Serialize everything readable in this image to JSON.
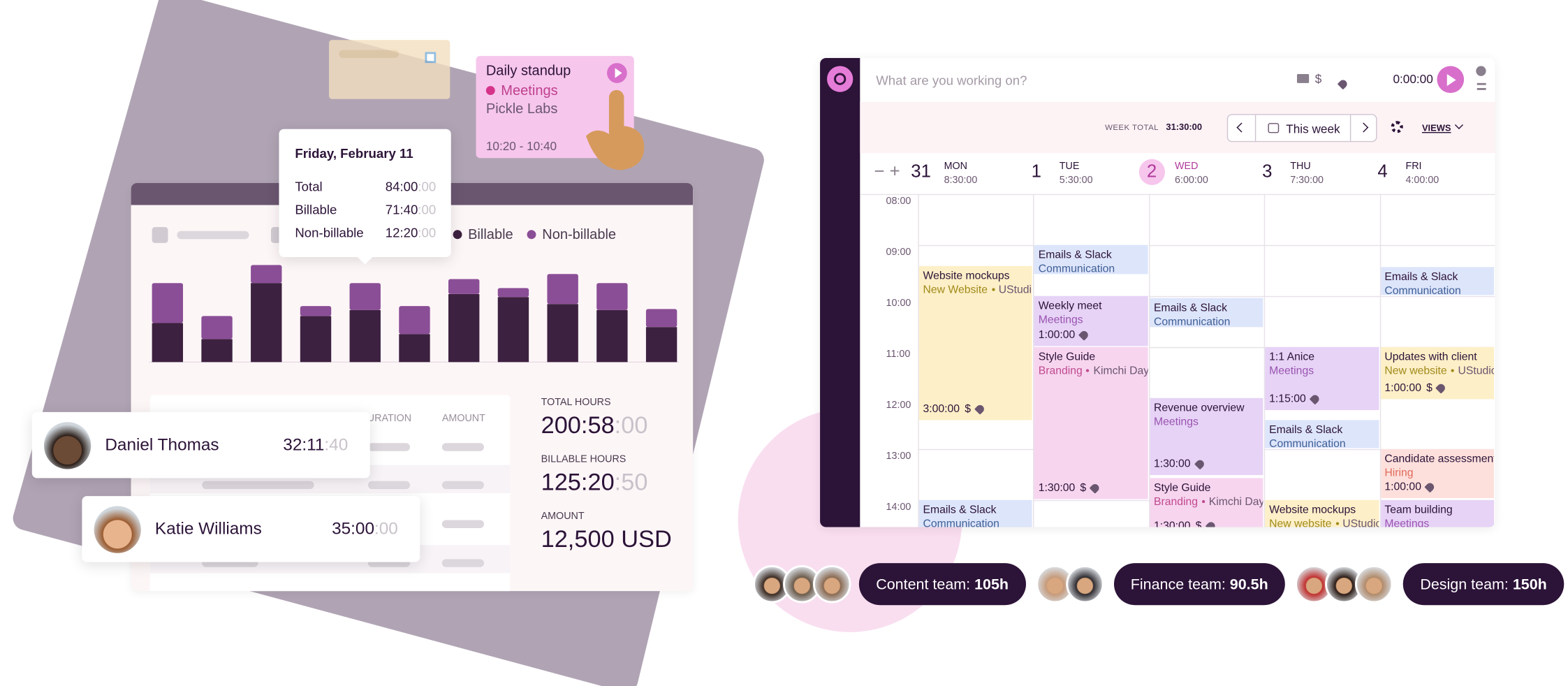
{
  "standup_card": {
    "title": "Daily standup",
    "project": "Meetings",
    "client": "Pickle Labs",
    "time": "10:20 - 10:40"
  },
  "tooltip": {
    "date": "Friday, February 11",
    "rows": [
      {
        "label": "Total",
        "time": "84:00",
        "seconds": ":00"
      },
      {
        "label": "Billable",
        "time": "71:40",
        "seconds": ":00"
      },
      {
        "label": "Non-billable",
        "time": "12:20",
        "seconds": ":00"
      }
    ]
  },
  "bar_chart": {
    "series": [
      {
        "name": "Billable",
        "color": "#3d2140",
        "values": [
          39,
          23,
          79,
          46,
          52,
          28,
          68,
          65,
          58,
          52,
          35
        ]
      },
      {
        "name": "Non-billable",
        "color": "#8a4e96",
        "values": [
          40,
          23,
          18,
          10,
          27,
          28,
          15,
          9,
          30,
          27,
          18
        ]
      }
    ]
  },
  "table": {
    "headers": [
      "DURATION",
      "AMOUNT"
    ]
  },
  "stats": [
    {
      "label": "TOTAL HOURS",
      "value": "200:58",
      "seconds": ":00"
    },
    {
      "label": "BILLABLE HOURS",
      "value": "125:20",
      "seconds": ":50"
    },
    {
      "label": "AMOUNT",
      "value": "12,500 USD"
    }
  ],
  "people": [
    {
      "name": "Daniel Thomas",
      "time": "32:11",
      "seconds": ":40"
    },
    {
      "name": "Katie Williams",
      "time": "35:00",
      "seconds": ":00"
    }
  ],
  "timer": {
    "placeholder": "What are you working on?",
    "currency": "$",
    "time": "0:00:00"
  },
  "week_bar": {
    "total_label": "WEEK TOTAL",
    "total": "31:30:00",
    "range": "This week",
    "views": "VIEWS"
  },
  "hours": [
    "08:00",
    "09:00",
    "10:00",
    "11:00",
    "12:00",
    "13:00",
    "14:00"
  ],
  "days": [
    {
      "date": "31",
      "name": "MON",
      "total": "8:30:00",
      "events": [
        {
          "title": "Website mockups",
          "project": "New Website",
          "client": "UStudio",
          "duration": "3:00:00",
          "sign": "$",
          "color": "#fdefc7",
          "project_color": "#a08a1a"
        },
        {
          "title": "Emails & Slack",
          "project": "Communication",
          "color": "#dde5fb",
          "project_color": "#3f5f95"
        }
      ]
    },
    {
      "date": "1",
      "name": "TUE",
      "total": "5:30:00",
      "events": [
        {
          "title": "Emails & Slack",
          "project": "Communication",
          "color": "#dde5fb",
          "project_color": "#3f5f95"
        },
        {
          "title": "Weekly meet",
          "project": "Meetings",
          "duration": "1:00:00",
          "color": "#e6d3f6",
          "project_color": "#9a53b0"
        },
        {
          "title": "Style Guide",
          "project": "Branding",
          "client": "Kimchi Days",
          "duration": "1:30:00",
          "sign": "$",
          "color": "#f7d5ef",
          "project_color": "#c04a8e"
        }
      ]
    },
    {
      "date": "2",
      "name": "WED",
      "total": "6:00:00",
      "events": [
        {
          "title": "Emails & Slack",
          "project": "Communication",
          "color": "#dde5fb",
          "project_color": "#3f5f95"
        },
        {
          "title": "Revenue overview",
          "project": "Meetings",
          "duration": "1:30:00",
          "color": "#e6d3f6",
          "project_color": "#9a53b0"
        },
        {
          "title": "Style Guide",
          "project": "Branding",
          "client": "Kimchi Days",
          "duration": "1:30:00",
          "sign": "$",
          "color": "#f7d5ef",
          "project_color": "#c04a8e"
        }
      ]
    },
    {
      "date": "3",
      "name": "THU",
      "total": "7:30:00",
      "events": [
        {
          "title": "1:1 Anice",
          "project": "Meetings",
          "duration": "1:15:00",
          "color": "#e6d3f6",
          "project_color": "#9a53b0"
        },
        {
          "title": "Emails & Slack",
          "project": "Communication",
          "color": "#dde5fb",
          "project_color": "#3f5f95"
        },
        {
          "title": "Website mockups",
          "project": "New website",
          "client": "UStudio",
          "color": "#fdefc7",
          "project_color": "#a08a1a"
        }
      ]
    },
    {
      "date": "4",
      "name": "FRI",
      "total": "4:00:00",
      "events": [
        {
          "title": "Emails & Slack",
          "project": "Communication",
          "color": "#dde5fb",
          "project_color": "#3f5f95"
        },
        {
          "title": "Updates with client",
          "project": "New website",
          "client": "UStudio",
          "duration": "1:00:00",
          "sign": "$",
          "color": "#fdefc7",
          "project_color": "#a08a1a"
        },
        {
          "title": "Candidate assessment",
          "project": "Hiring",
          "duration": "1:00:00",
          "color": "#fde0dc",
          "project_color": "#e06a5a"
        },
        {
          "title": "Team building",
          "project": "Meetings",
          "color": "#e6d3f6",
          "project_color": "#9a53b0"
        }
      ]
    }
  ],
  "teams": [
    {
      "name": "Content team: ",
      "hours": "105h"
    },
    {
      "name": "Finance team: ",
      "hours": "90.5h"
    },
    {
      "name": "Design team: ",
      "hours": "150h"
    }
  ]
}
